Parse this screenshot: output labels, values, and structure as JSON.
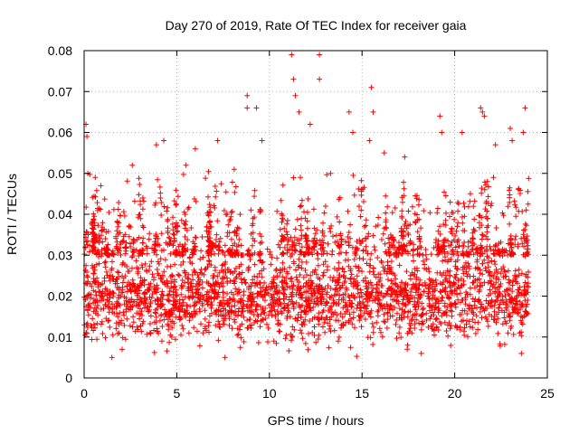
{
  "chart_data": {
    "type": "scatter",
    "title": "Day 270 of 2019, Rate Of TEC Index for receiver gaia",
    "xlabel": "GPS time / hours",
    "ylabel": "ROTI / TECUs",
    "xlim": [
      0,
      25
    ],
    "ylim": [
      0,
      0.08
    ],
    "x_ticks": [
      0,
      5,
      10,
      15,
      20,
      25
    ],
    "x_tick_labels": [
      "0",
      "5",
      "10",
      "15",
      "20",
      "25"
    ],
    "y_ticks": [
      0,
      0.01,
      0.02,
      0.03,
      0.04,
      0.05,
      0.06,
      0.07,
      0.08
    ],
    "y_tick_labels": [
      "0",
      "0.01",
      "0.02",
      "0.03",
      "0.04",
      "0.05",
      "0.06",
      "0.07",
      "0.08"
    ],
    "grid": true,
    "marker": "+",
    "color": "#ff0000",
    "series": [
      {
        "name": "ROTI",
        "x_range": [
          0,
          24
        ],
        "typical_band": [
          0.01,
          0.03
        ],
        "notable_points": [
          {
            "x": 0.1,
            "y": 0.062
          },
          {
            "x": 0.15,
            "y": 0.059
          },
          {
            "x": 0.2,
            "y": 0.05
          },
          {
            "x": 0.6,
            "y": 0.049
          },
          {
            "x": 0.9,
            "y": 0.047
          },
          {
            "x": 2.6,
            "y": 0.052
          },
          {
            "x": 3.9,
            "y": 0.057
          },
          {
            "x": 4.3,
            "y": 0.058
          },
          {
            "x": 5.5,
            "y": 0.052
          },
          {
            "x": 6.0,
            "y": 0.056
          },
          {
            "x": 7.2,
            "y": 0.058
          },
          {
            "x": 8.1,
            "y": 0.051
          },
          {
            "x": 8.8,
            "y": 0.069
          },
          {
            "x": 8.8,
            "y": 0.066
          },
          {
            "x": 9.3,
            "y": 0.066
          },
          {
            "x": 9.6,
            "y": 0.058
          },
          {
            "x": 11.2,
            "y": 0.079
          },
          {
            "x": 11.3,
            "y": 0.073
          },
          {
            "x": 11.4,
            "y": 0.069
          },
          {
            "x": 11.6,
            "y": 0.065
          },
          {
            "x": 12.2,
            "y": 0.062
          },
          {
            "x": 12.7,
            "y": 0.079
          },
          {
            "x": 12.7,
            "y": 0.073
          },
          {
            "x": 13.3,
            "y": 0.05
          },
          {
            "x": 14.3,
            "y": 0.065
          },
          {
            "x": 14.5,
            "y": 0.06
          },
          {
            "x": 15.5,
            "y": 0.071
          },
          {
            "x": 15.6,
            "y": 0.065
          },
          {
            "x": 15.4,
            "y": 0.058
          },
          {
            "x": 16.2,
            "y": 0.055
          },
          {
            "x": 17.3,
            "y": 0.054
          },
          {
            "x": 19.2,
            "y": 0.064
          },
          {
            "x": 19.3,
            "y": 0.06
          },
          {
            "x": 20.4,
            "y": 0.06
          },
          {
            "x": 21.4,
            "y": 0.066
          },
          {
            "x": 21.5,
            "y": 0.065
          },
          {
            "x": 21.6,
            "y": 0.064
          },
          {
            "x": 22.2,
            "y": 0.057
          },
          {
            "x": 23.0,
            "y": 0.061
          },
          {
            "x": 23.1,
            "y": 0.058
          },
          {
            "x": 23.8,
            "y": 0.066
          },
          {
            "x": 23.7,
            "y": 0.06
          },
          {
            "x": 1.5,
            "y": 0.005
          },
          {
            "x": 7.6,
            "y": 0.005
          },
          {
            "x": 18.2,
            "y": 0.006
          },
          {
            "x": 23.6,
            "y": 0.006
          }
        ]
      }
    ]
  }
}
